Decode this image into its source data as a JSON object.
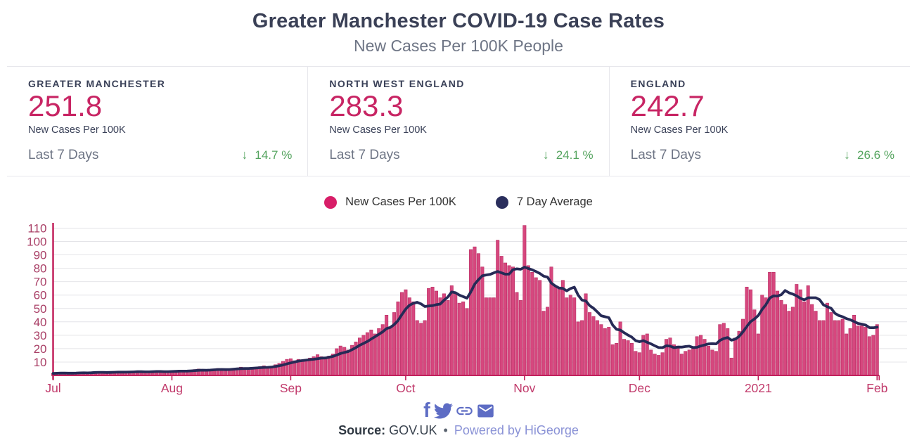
{
  "header": {
    "title": "Greater Manchester COVID-19 Case Rates",
    "subtitle": "New Cases Per 100K People"
  },
  "stats": [
    {
      "region": "GREATER MANCHESTER",
      "value": "251.8",
      "metric": "New Cases Per 100K",
      "period": "Last 7 Days",
      "arrow": "↓",
      "change": "14.7 %",
      "direction": "down"
    },
    {
      "region": "NORTH WEST ENGLAND",
      "value": "283.3",
      "metric": "New Cases Per 100K",
      "period": "Last 7 Days",
      "arrow": "↓",
      "change": "24.1 %",
      "direction": "down"
    },
    {
      "region": "ENGLAND",
      "value": "242.7",
      "metric": "New Cases Per 100K",
      "period": "Last 7 Days",
      "arrow": "↓",
      "change": "26.6 %",
      "direction": "down"
    }
  ],
  "legend": {
    "items": [
      {
        "label": "New Cases Per 100K",
        "color": "#d81e68"
      },
      {
        "label": "7 Day Average",
        "color": "#2a2e5c"
      }
    ]
  },
  "footer": {
    "icons": [
      "facebook-icon",
      "twitter-icon",
      "link-icon",
      "email-icon"
    ],
    "source_label": "Source:",
    "source_text": "GOV.UK",
    "separator": "•",
    "powered_by": "Powered by HiGeorge"
  },
  "colors": {
    "bar_fill": "#d6477e",
    "bar_stroke": "#b82e63",
    "avg_line": "#262a56",
    "axis_line": "#c2215c",
    "y_tick_label": "#a93f66",
    "x_tick_label": "#c13a6b",
    "gridline": "#e4e4e8",
    "stat_value": "#c82564",
    "change_green": "#55a45f",
    "share_icon": "#5d6cc4"
  },
  "chart_data": {
    "type": "bar",
    "title": "Greater Manchester COVID-19 Case Rates",
    "subtitle": "New Cases Per 100K People",
    "xlabel": "",
    "ylabel": "New Cases Per 100K",
    "start_date": "2020-07-01",
    "end_date": "2021-02-01",
    "ylim": [
      0,
      115
    ],
    "yticks": [
      10,
      20,
      30,
      40,
      50,
      60,
      70,
      80,
      90,
      100,
      110
    ],
    "grid": true,
    "legend_position": "top-center",
    "x_tick_labels": [
      "Jul",
      "Aug",
      "Sep",
      "Oct",
      "Nov",
      "Dec",
      "2021",
      "Feb"
    ],
    "x_tick_day_offsets": [
      0,
      31,
      62,
      92,
      123,
      153,
      184,
      215
    ],
    "series": [
      {
        "name": "New Cases Per 100K",
        "type": "bar",
        "color": "#d6477e",
        "values": [
          1.5,
          1.8,
          2.0,
          1.6,
          1.4,
          1.7,
          2.2,
          2.5,
          2.1,
          1.9,
          2.3,
          2.6,
          2.4,
          2.2,
          2.0,
          2.4,
          2.8,
          3.0,
          2.6,
          2.3,
          2.5,
          2.9,
          3.2,
          2.8,
          2.5,
          2.7,
          3.0,
          3.3,
          2.9,
          2.6,
          2.8,
          3.2,
          3.6,
          4.0,
          3.4,
          3.0,
          3.8,
          4.4,
          4.8,
          4.2,
          3.6,
          4.0,
          4.6,
          5.2,
          4.8,
          4.2,
          4.6,
          5.0,
          5.6,
          6.2,
          5.6,
          5.0,
          5.4,
          6.0,
          6.6,
          7.2,
          6.4,
          7.0,
          8.0,
          9.0,
          10.5,
          12.0,
          12.5,
          11,
          12,
          10.5,
          11.5,
          13,
          14,
          15.5,
          14,
          12.5,
          14.5,
          16,
          20,
          22,
          21,
          19,
          22.5,
          25,
          28,
          30,
          32,
          34,
          31,
          35,
          38,
          45,
          36,
          47,
          55,
          62,
          64,
          58,
          55,
          41,
          39,
          41,
          65,
          66,
          63,
          58,
          61,
          56,
          67,
          61,
          54,
          55,
          50,
          94,
          96,
          91,
          81,
          58,
          58,
          58,
          101,
          89,
          84,
          82,
          81,
          62,
          56,
          112,
          82,
          77,
          73,
          71,
          48,
          51,
          81,
          67,
          66,
          71,
          58,
          60,
          58,
          40,
          41,
          61,
          47,
          44,
          41,
          38,
          35,
          36,
          23,
          24,
          40,
          27,
          26,
          24,
          18,
          17,
          30,
          31,
          19,
          16,
          15,
          17,
          27,
          28,
          23,
          22,
          16,
          18,
          19,
          20,
          29,
          30,
          27,
          22,
          19,
          18,
          38,
          39,
          35,
          13,
          28,
          33,
          42,
          66,
          64,
          49,
          31,
          60,
          58,
          77,
          77,
          63,
          56,
          53,
          48,
          51,
          68,
          64,
          55,
          67,
          53,
          48,
          41,
          41,
          54,
          47,
          41,
          41,
          42,
          31,
          35,
          45,
          37,
          37,
          36,
          29,
          30,
          38
        ]
      },
      {
        "name": "7 Day Average",
        "type": "line",
        "color": "#262a56",
        "derivation": "trailing-7-day-mean-of-bar-series"
      }
    ]
  }
}
